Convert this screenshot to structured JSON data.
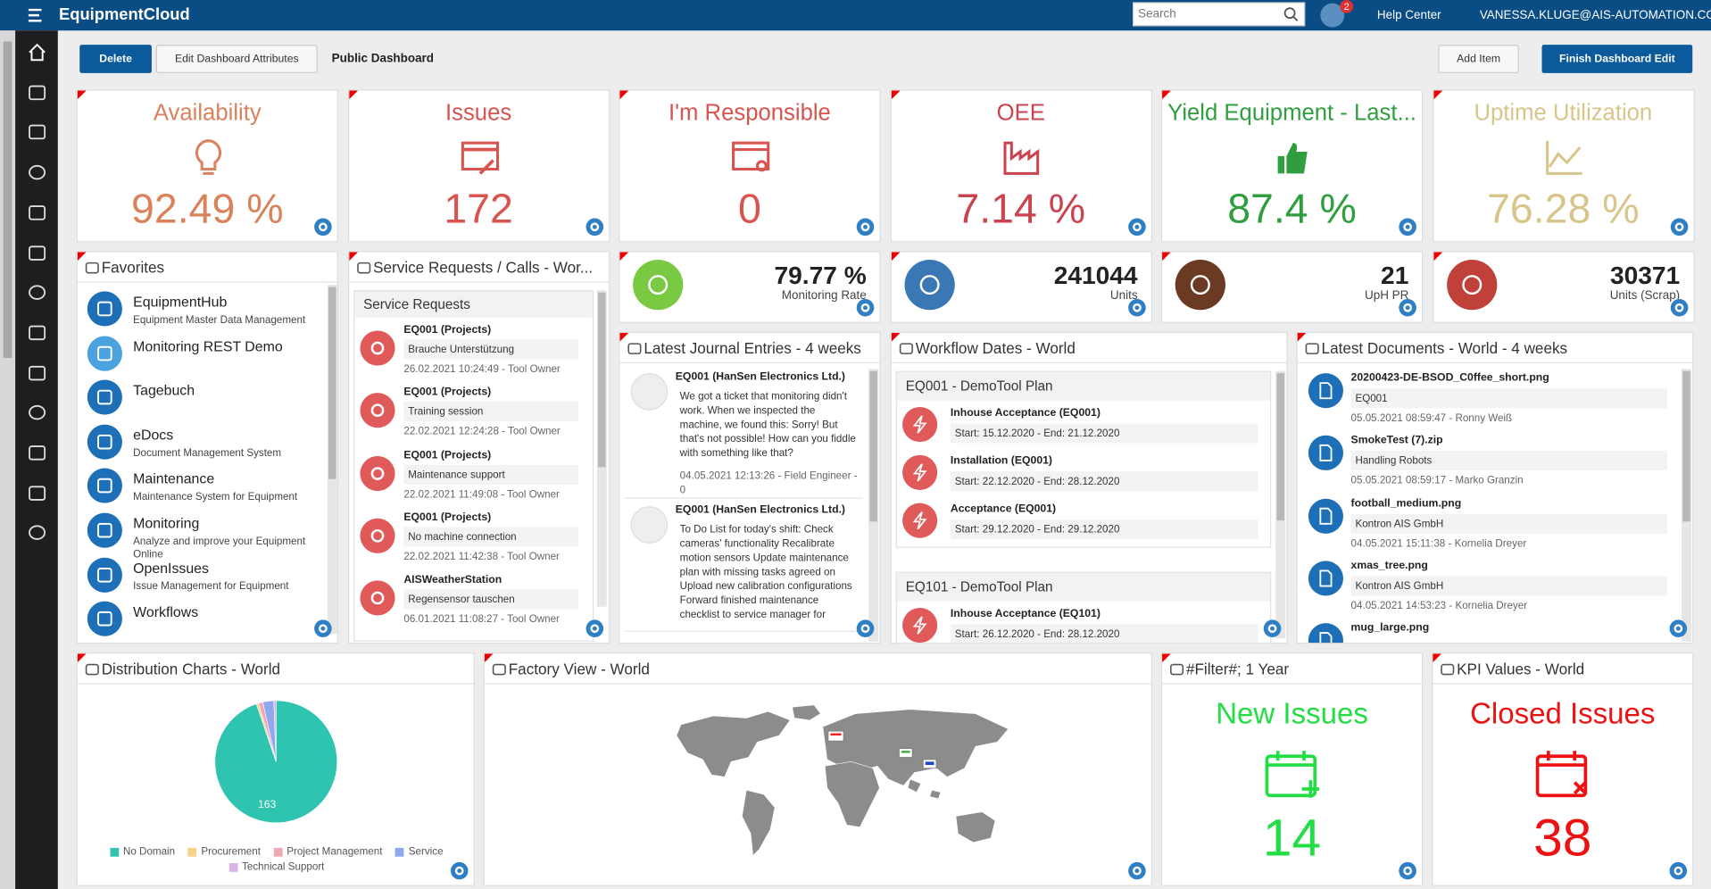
{
  "header": {
    "app_title": "EquipmentCloud",
    "search_placeholder": "Search",
    "notification_count": "2",
    "help": "Help Center",
    "user": "VANESSA.KLUGE@AIS-AUTOMATION.COM"
  },
  "toolbar": {
    "delete": "Delete",
    "edit": "Edit Dashboard Attributes",
    "title": "Public Dashboard",
    "add": "Add Item",
    "finish": "Finish Dashboard Edit"
  },
  "kpi_tiles": [
    {
      "title": "Availability",
      "value": "92.49 %",
      "color": "#d9825b"
    },
    {
      "title": "Issues",
      "value": "172",
      "color": "#d9534f"
    },
    {
      "title": "I'm Responsible",
      "value": "0",
      "color": "#d9534f"
    },
    {
      "title": "OEE",
      "value": "7.14 %",
      "color": "#c9444f"
    },
    {
      "title": "Yield Equipment - Last...",
      "value": "87.4 %",
      "color": "#2e9e3e"
    },
    {
      "title": "Uptime Utilization",
      "value": "76.28 %",
      "color": "#d8c58a"
    }
  ],
  "metric_tiles": [
    {
      "value": "79.77 %",
      "label": "Monitoring Rate",
      "color": "#7ac943"
    },
    {
      "value": "241044",
      "label": "Units",
      "color": "#3a78b5"
    },
    {
      "value": "21",
      "label": "UpH PR",
      "color": "#6b3a22"
    },
    {
      "value": "30371",
      "label": "Units (Scrap)",
      "color": "#c0403a"
    }
  ],
  "favorites": {
    "title": "Favorites",
    "items": [
      {
        "name": "EquipmentHub",
        "desc": "Equipment Master Data Management"
      },
      {
        "name": "Monitoring REST Demo"
      },
      {
        "name": "Tagebuch"
      },
      {
        "name": "eDocs",
        "desc": "Document Management System"
      },
      {
        "name": "Maintenance",
        "desc": "Maintenance System for Equipment"
      },
      {
        "name": "Monitoring",
        "desc": "Analyze and improve your Equipment Online"
      },
      {
        "name": "OpenIssues",
        "desc": "Issue Management for Equipment"
      },
      {
        "name": "Workflows"
      }
    ]
  },
  "service_requests": {
    "title": "Service Requests / Calls - Wor...",
    "section": "Service Requests",
    "items": [
      {
        "title": "EQ001 (Projects)",
        "text": "Brauche Unterstützung",
        "meta": "26.02.2021 10:24:49 - Tool Owner"
      },
      {
        "title": "EQ001 (Projects)",
        "text": "Training session",
        "meta": "22.02.2021 12:24:28 - Tool Owner"
      },
      {
        "title": "EQ001 (Projects)",
        "text": "Maintenance support",
        "meta": "22.02.2021 11:49:08 - Tool Owner"
      },
      {
        "title": "EQ001 (Projects)",
        "text": "No machine connection",
        "meta": "22.02.2021 11:42:38 - Tool Owner"
      },
      {
        "title": "AISWeatherStation",
        "text": "Regensensor tauschen",
        "meta": "06.01.2021 11:08:27 - Tool Owner"
      }
    ]
  },
  "journal": {
    "title": "Latest Journal Entries - 4 weeks",
    "items": [
      {
        "title": "EQ001 (HanSen Electronics Ltd.)",
        "text": "We got a ticket that monitoring didn't work. When we inspected the machine, we found this: Sorry! But that's not possible! How can you fiddle with something like that?",
        "meta": "04.05.2021 12:13:26 - Field Engineer - 0"
      },
      {
        "title": "EQ001 (HanSen Electronics Ltd.)",
        "text": "To Do List for today's shift: Check cameras' functionality Recalibrate motion sensors Update maintenance plan with missing tasks agreed on Upload new calibration configurations Forward finished maintenance checklist to service manager for"
      }
    ]
  },
  "workflow": {
    "title": "Workflow Dates - World",
    "sections": [
      {
        "title": "EQ001 - DemoTool Plan",
        "items": [
          {
            "name": "Inhouse Acceptance (EQ001)",
            "dates": "Start: 15.12.2020 - End: 21.12.2020"
          },
          {
            "name": "Installation (EQ001)",
            "dates": "Start: 22.12.2020 - End: 28.12.2020"
          },
          {
            "name": "Acceptance (EQ001)",
            "dates": "Start: 29.12.2020 - End: 29.12.2020"
          }
        ]
      },
      {
        "title": "EQ101 - DemoTool Plan",
        "items": [
          {
            "name": "Inhouse Acceptance (EQ101)",
            "dates": "Start: 26.12.2020 - End: 28.12.2020"
          }
        ]
      }
    ]
  },
  "documents": {
    "title": "Latest Documents - World - 4 weeks",
    "items": [
      {
        "name": "20200423-DE-BSOD_C0ffee_short.png",
        "text": "EQ001",
        "meta": "05.05.2021 08:59:47 - Ronny Weiß"
      },
      {
        "name": "SmokeTest (7).zip",
        "text": "Handling Robots",
        "meta": "05.05.2021 08:59:17 - Marko Granzin"
      },
      {
        "name": "football_medium.png",
        "text": "Kontron AIS GmbH",
        "meta": "04.05.2021 15:11:38 - Kornelia Dreyer"
      },
      {
        "name": "xmas_tree.png",
        "text": "Kontron AIS GmbH",
        "meta": "04.05.2021 14:53:23 - Kornelia Dreyer"
      },
      {
        "name": "mug_large.png"
      }
    ]
  },
  "chart_data": {
    "type": "pie",
    "title": "Distribution Charts - World",
    "categories": [
      "No Domain",
      "Procurement",
      "Project Management",
      "Service",
      "Technical Support"
    ],
    "values": [
      163,
      1,
      2,
      5,
      1
    ],
    "colors": [
      "#2ec4b0",
      "#f6d58a",
      "#f2a7b5",
      "#8fa8ee",
      "#d7b4e8"
    ]
  },
  "factory": {
    "title": "Factory View - World"
  },
  "filter_tile": {
    "title": "#Filter#; 1 Year",
    "label": "New Issues",
    "value": "14",
    "color": "#22dd44"
  },
  "kpi_values_tile": {
    "title": "KPI Values - World",
    "label": "Closed Issues",
    "value": "38",
    "color": "#ee1111"
  }
}
